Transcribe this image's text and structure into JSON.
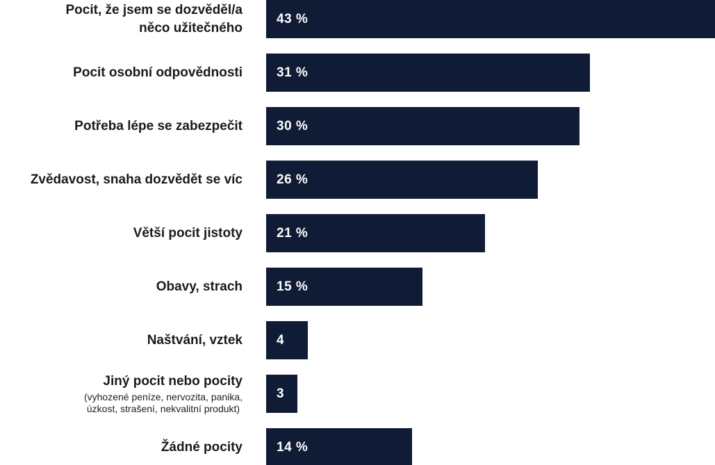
{
  "chart_data": {
    "type": "bar",
    "orientation": "horizontal",
    "title": "",
    "xlabel": "",
    "ylabel": "",
    "xlim": [
      0,
      43
    ],
    "grid": false,
    "legend": false,
    "bar_color": "#101c36",
    "value_text_color": "#ffffff",
    "label_text_color": "#1a1a1a",
    "categories": [
      "Pocit, že jsem se dozvěděl/a něco užitečného",
      "Pocit osobní odpovědnosti",
      "Potřeba lépe se zabezpečit",
      "Zvědavost, snaha dozvědět se víc",
      "Větší pocit jistoty",
      "Obavy, strach",
      "Naštvání, vztek",
      "Jiný pocit nebo pocity (vyhozené peníze, nervozita, panika, úzkost, strašení, nekvalitní produkt)",
      "Žádné pocity"
    ],
    "values": [
      43,
      31,
      30,
      26,
      21,
      15,
      4,
      3,
      14
    ],
    "rows": [
      {
        "label": "Pocit, že jsem se dozvěděl/a\nněco užitečného",
        "sublabel": "",
        "value": 43,
        "value_label": "43 %"
      },
      {
        "label": "Pocit osobní odpovědnosti",
        "sublabel": "",
        "value": 31,
        "value_label": "31 %"
      },
      {
        "label": "Potřeba lépe se zabezpečit",
        "sublabel": "",
        "value": 30,
        "value_label": "30 %"
      },
      {
        "label": "Zvědavost, snaha dozvědět se víc",
        "sublabel": "",
        "value": 26,
        "value_label": "26 %"
      },
      {
        "label": "Větší pocit jistoty",
        "sublabel": "",
        "value": 21,
        "value_label": "21 %"
      },
      {
        "label": "Obavy, strach",
        "sublabel": "",
        "value": 15,
        "value_label": "15 %"
      },
      {
        "label": "Naštvání, vztek",
        "sublabel": "",
        "value": 4,
        "value_label": "4"
      },
      {
        "label": "Jiný pocit nebo pocity",
        "sublabel": "(vyhozené peníze, nervozita, panika,\núzkost, strašení, nekvalitní produkt)",
        "value": 3,
        "value_label": "3"
      },
      {
        "label": "Žádné pocity",
        "sublabel": "",
        "value": 14,
        "value_label": "14 %"
      }
    ]
  }
}
